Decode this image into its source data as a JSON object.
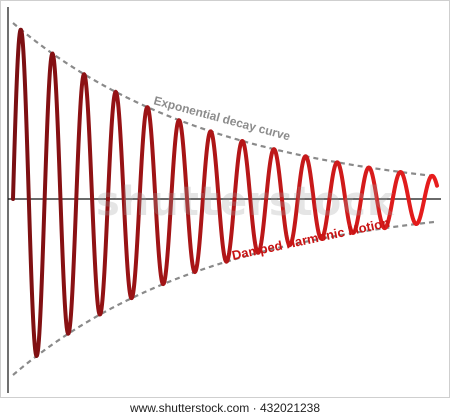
{
  "chart_data": {
    "type": "line",
    "title": "",
    "xlabel": "",
    "ylabel": "",
    "grid": false,
    "annotations": {
      "decay_label": "Exponential decay curve",
      "motion_label": "Damped Harmonic Motion"
    },
    "series": [
      {
        "kind": "oscillation",
        "amplitude": 1.0,
        "decay_rate": 2.05,
        "cycles": 13.4,
        "x_range": [
          0,
          1
        ],
        "color_start": "#7a0f12",
        "color_end": "#e81d1d"
      },
      {
        "kind": "envelope",
        "amplitude": 1.0,
        "decay_rate": 2.05,
        "color": "#8a8a8a"
      }
    ],
    "ylim": [
      -1,
      1
    ]
  },
  "footer": {
    "text": "www.shutterstock.com · 432021238"
  },
  "watermark": {
    "text": "shutterstock"
  }
}
